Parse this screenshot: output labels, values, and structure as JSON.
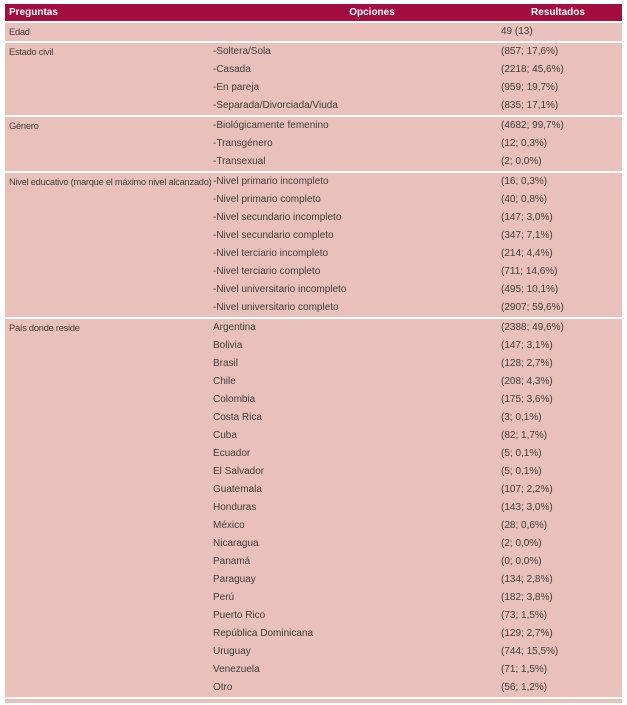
{
  "table": {
    "headers": [
      "Preguntas",
      "Opciones",
      "Resultados"
    ],
    "sections": [
      {
        "question": "Edad",
        "rows": [
          {
            "option": "",
            "result": "49 (13)"
          }
        ]
      },
      {
        "question": "Estado civil",
        "rows": [
          {
            "option": "-Soltera/Sola",
            "result": "(857; 17,6%)"
          },
          {
            "option": "-Casada",
            "result": "(2218; 45,6%)"
          },
          {
            "option": "-En pareja",
            "result": "(959; 19,7%)"
          },
          {
            "option": "-Separada/Divorciada/Viuda",
            "result": "(835; 17,1%)"
          }
        ]
      },
      {
        "question": "Género",
        "rows": [
          {
            "option": "-Biológicamente femenino",
            "result": "(4682; 99,7%)"
          },
          {
            "option": "-Transgénero",
            "result": "(12; 0,3%)"
          },
          {
            "option": "-Transexual",
            "result": "(2; 0,0%)"
          }
        ]
      },
      {
        "question": "Nivel educativo (marque el máximo nivel alcanzado)",
        "rows": [
          {
            "option": "-Nivel primario incompleto",
            "result": "(16; 0,3%)"
          },
          {
            "option": "-Nivel primario completo",
            "result": "(40; 0,8%)"
          },
          {
            "option": "-Nivel secundario incompleto",
            "result": "(147; 3,0%)"
          },
          {
            "option": "-Nivel secundario completo",
            "result": "(347; 7,1%)"
          },
          {
            "option": "-Nivel terciario incompleto",
            "result": "(214; 4,4%)"
          },
          {
            "option": "-Nivel terciario completo",
            "result": "(711; 14,6%)"
          },
          {
            "option": "-Nivel universitario incompleto",
            "result": "(495; 10,1%)"
          },
          {
            "option": "-Nivel universitario completo",
            "result": "(2907; 59,6%)"
          }
        ]
      },
      {
        "question": "País donde reside",
        "rows": [
          {
            "option": "Argentina",
            "result": "(2388; 49,6%)"
          },
          {
            "option": "Bolivia",
            "result": "(147; 3,1%)"
          },
          {
            "option": "Brasil",
            "result": "(128; 2,7%)"
          },
          {
            "option": "Chile",
            "result": "(208; 4,3%)"
          },
          {
            "option": "Colombia",
            "result": "(175; 3,6%)"
          },
          {
            "option": "Costa Rica",
            "result": "(3; 0,1%)"
          },
          {
            "option": "Cuba",
            "result": "(82; 1,7%)"
          },
          {
            "option": "Ecuador",
            "result": "(5; 0,1%)"
          },
          {
            "option": "El Salvador",
            "result": "(5; 0,1%)"
          },
          {
            "option": "Guatemala",
            "result": "(107; 2,2%)"
          },
          {
            "option": "Honduras",
            "result": "(143; 3,0%)"
          },
          {
            "option": "México",
            "result": "(28; 0,6%)"
          },
          {
            "option": "Nicaragua",
            "result": "(2; 0,0%)"
          },
          {
            "option": "Panamá",
            "result": "(0; 0,0%)"
          },
          {
            "option": "Paraguay",
            "result": "(134; 2,8%)"
          },
          {
            "option": "Perú",
            "result": "(182; 3,8%)"
          },
          {
            "option": "Puerto Rico",
            "result": "(73; 1,5%)"
          },
          {
            "option": "República Dominicana",
            "result": "(129; 2,7%)"
          },
          {
            "option": "Uruguay",
            "result": "(744; 15,5%)"
          },
          {
            "option": "Venezuela",
            "result": "(71; 1,5%)"
          },
          {
            "option": "Otro",
            "result": "(56; 1,2%)"
          }
        ]
      }
    ]
  },
  "colors": {
    "header_bg": "#A40D3F",
    "header_text": "#FFFFFF",
    "row_bg": "#EAC1BA",
    "body_text": "#3D3D3D"
  }
}
